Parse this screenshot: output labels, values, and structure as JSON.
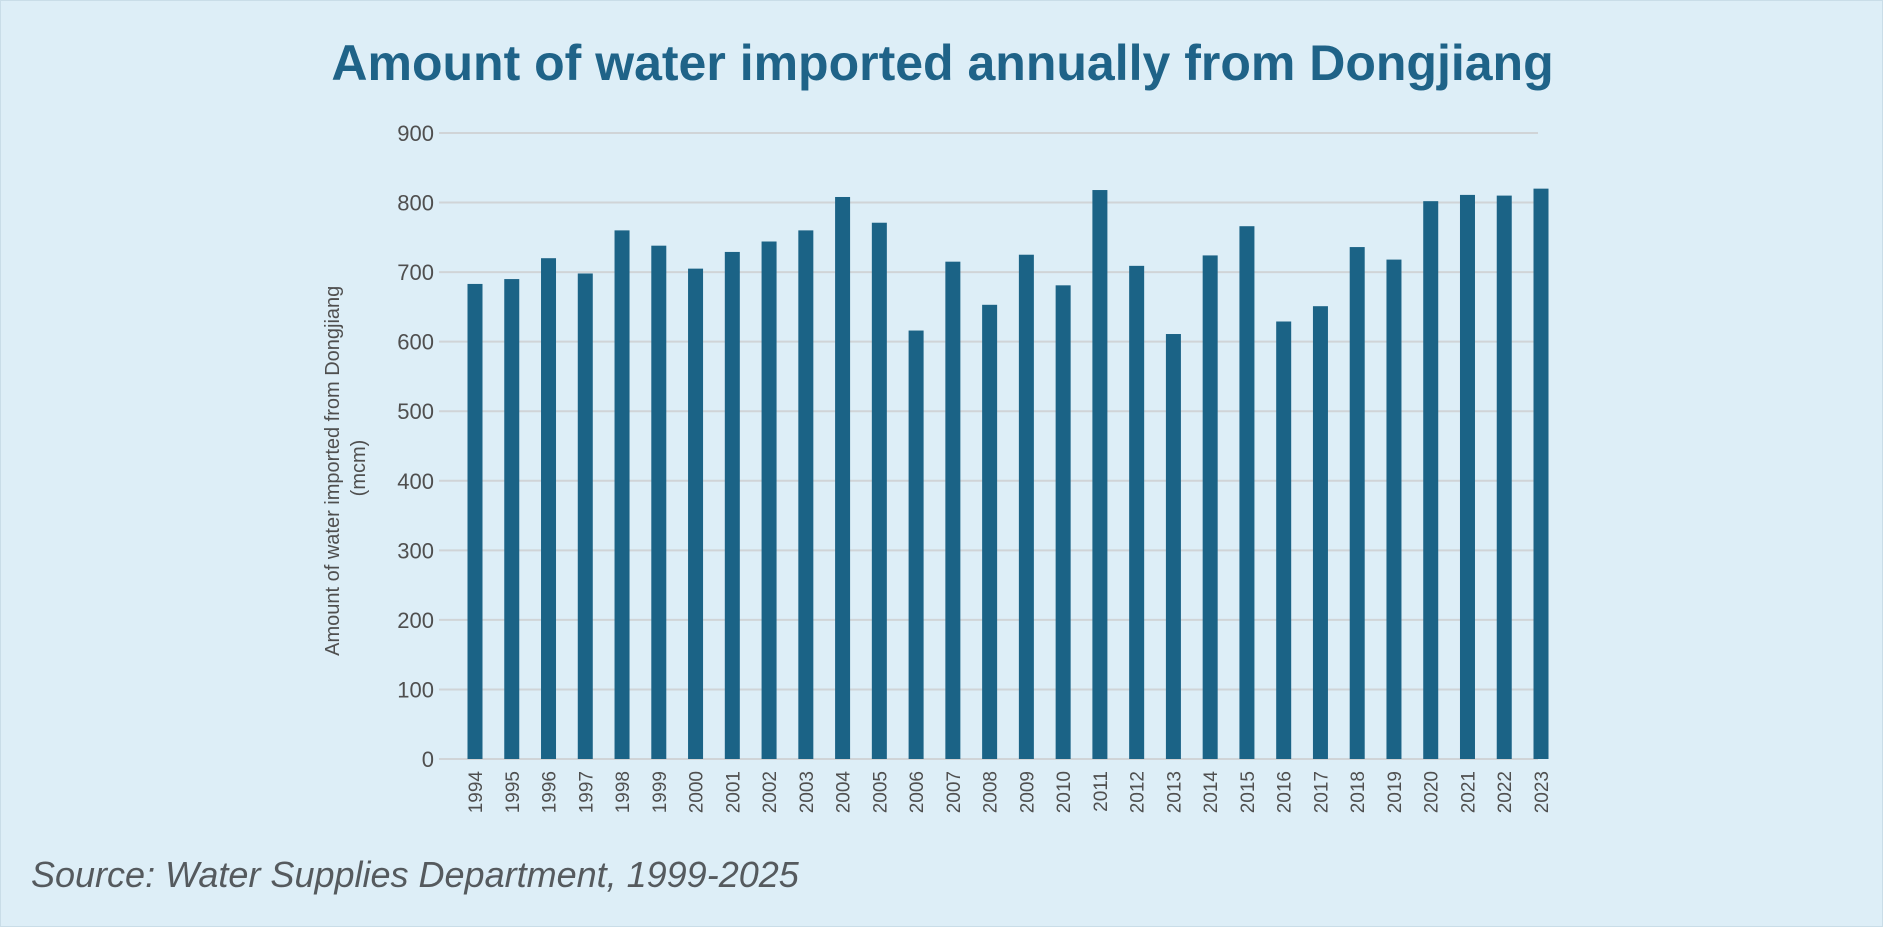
{
  "chart_data": {
    "type": "bar",
    "title": "Amount of water imported annually from Dongjiang",
    "xlabel": "",
    "ylabel_lines": [
      "Amount of water imported from Dongjiang",
      "(mcm)"
    ],
    "ylim": [
      0,
      900
    ],
    "yticks": [
      "0",
      "100",
      "200",
      "300",
      "400",
      "500",
      "600",
      "700",
      "800",
      "900"
    ],
    "grid": true,
    "legend": "none",
    "categories": [
      "1994",
      "1995",
      "1996",
      "1997",
      "1998",
      "1999",
      "2000",
      "2001",
      "2002",
      "2003",
      "2004",
      "2005",
      "2006",
      "2007",
      "2008",
      "2009",
      "2010",
      "2011",
      "2012",
      "2013",
      "2014",
      "2015",
      "2016",
      "2017",
      "2018",
      "2019",
      "2020",
      "2021",
      "2022",
      "2023"
    ],
    "values": [
      683,
      690,
      720,
      698,
      760,
      738,
      705,
      729,
      744,
      760,
      808,
      771,
      616,
      715,
      653,
      725,
      681,
      818,
      709,
      611,
      724,
      766,
      629,
      651,
      736,
      718,
      802,
      811,
      810,
      820
    ],
    "colors": {
      "bar": "#1b6386",
      "grid": "#d0d4d7",
      "background": "#ddeef7"
    }
  },
  "source": "Source: Water Supplies Department, 1999-2025"
}
